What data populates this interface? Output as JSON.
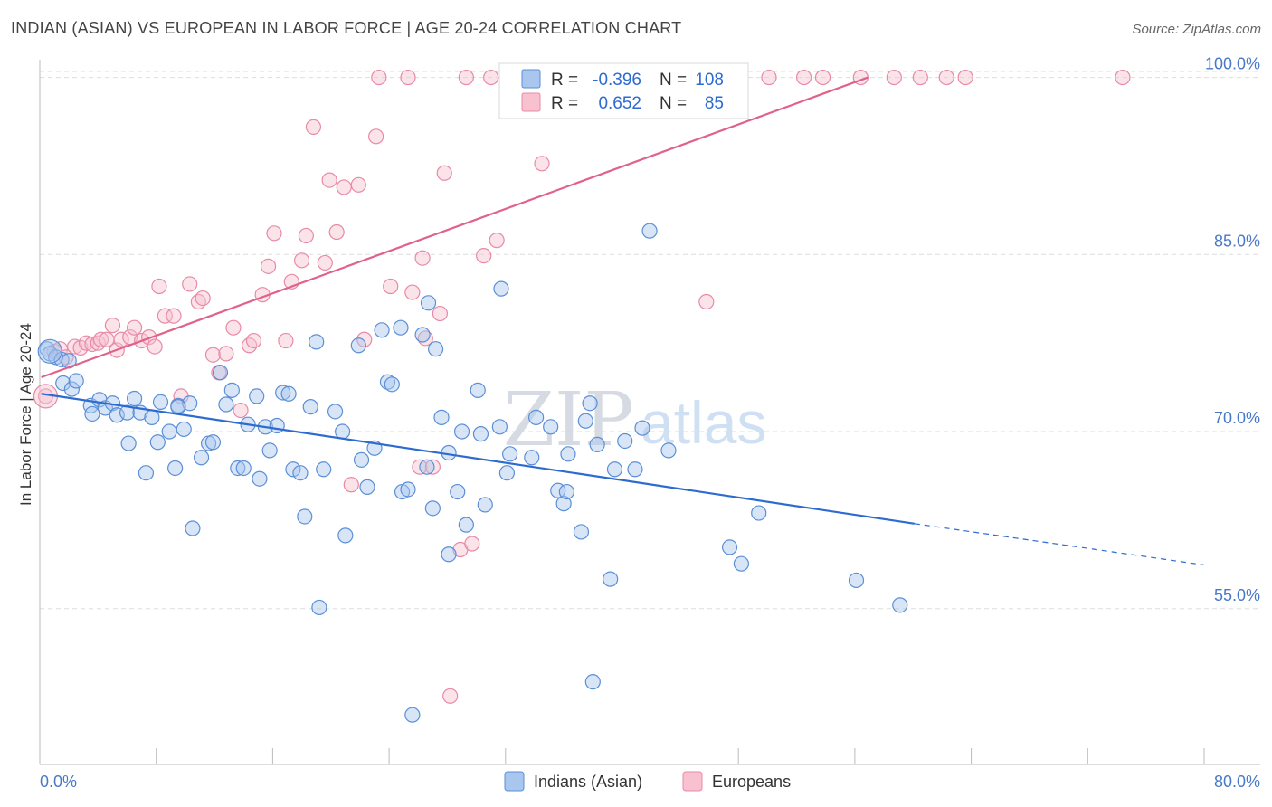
{
  "title": "INDIAN (ASIAN) VS EUROPEAN IN LABOR FORCE | AGE 20-24 CORRELATION CHART",
  "source": "Source: ZipAtlas.com",
  "watermark": {
    "part1": "ZIP",
    "part2": "atlas"
  },
  "colors": {
    "blue_fill": "#a8c6ee",
    "blue_stroke": "#5b8fd6",
    "blue_line": "#2d6bd0",
    "pink_fill": "#f7c1d0",
    "pink_stroke": "#e88aa6",
    "pink_line": "#e0628b",
    "grid": "#dddddd",
    "tick_text": "#4a78c8"
  },
  "legend": {
    "rows": [
      {
        "r_label": "R =",
        "r_value": "-0.396",
        "n_label": "N =",
        "n_value": "108"
      },
      {
        "r_label": "R =",
        "r_value": "0.652",
        "n_label": "N =",
        "n_value": "85"
      }
    ]
  },
  "chart_data": {
    "type": "scatter",
    "title": "INDIAN (ASIAN) VS EUROPEAN IN LABOR FORCE | AGE 20-24 CORRELATION CHART",
    "xlabel": "",
    "ylabel": "In Labor Force | Age 20-24",
    "xlim": [
      0,
      80
    ],
    "ylim": [
      41.8,
      101.5
    ],
    "x_tick_labels": {
      "min": "0.0%",
      "max": "80.0%"
    },
    "y_ticks": [
      {
        "value": 100,
        "label": "100.0%"
      },
      {
        "value": 85,
        "label": "85.0%"
      },
      {
        "value": 70,
        "label": "70.0%"
      },
      {
        "value": 55,
        "label": "55.0%"
      }
    ],
    "grid": true,
    "legend_placement": "bottom-center",
    "series": [
      {
        "name": "Indians (Asian)",
        "color": "#5b8fd6",
        "trend": {
          "x0": 0.1,
          "y0": 73.2,
          "x1": 60.1,
          "y1": 62.2,
          "dash_to_x": 80.0,
          "dash_to_y": 58.7
        },
        "points": [
          [
            0.5,
            77.0
          ],
          [
            0.7,
            76.6
          ],
          [
            1.1,
            76.3
          ],
          [
            1.5,
            76.1
          ],
          [
            1.6,
            74.1
          ],
          [
            2.2,
            73.6
          ],
          [
            2.5,
            74.3
          ],
          [
            3.5,
            72.2
          ],
          [
            4.1,
            72.7
          ],
          [
            4.5,
            72.0
          ],
          [
            5.0,
            72.4
          ],
          [
            5.3,
            71.4
          ],
          [
            6.0,
            71.6
          ],
          [
            6.1,
            69.0
          ],
          [
            6.5,
            72.8
          ],
          [
            6.9,
            71.6
          ],
          [
            7.3,
            66.5
          ],
          [
            7.7,
            71.2
          ],
          [
            8.1,
            69.1
          ],
          [
            8.3,
            72.5
          ],
          [
            8.9,
            70.0
          ],
          [
            9.3,
            66.9
          ],
          [
            9.5,
            72.2
          ],
          [
            9.9,
            70.2
          ],
          [
            10.3,
            72.4
          ],
          [
            10.5,
            61.8
          ],
          [
            11.1,
            67.8
          ],
          [
            11.6,
            69.0
          ],
          [
            11.9,
            69.1
          ],
          [
            12.4,
            75.0
          ],
          [
            12.8,
            72.3
          ],
          [
            13.2,
            73.5
          ],
          [
            13.6,
            66.9
          ],
          [
            14.0,
            66.9
          ],
          [
            14.3,
            70.6
          ],
          [
            14.9,
            73.0
          ],
          [
            15.1,
            66.0
          ],
          [
            15.5,
            70.4
          ],
          [
            15.8,
            68.4
          ],
          [
            16.3,
            70.5
          ],
          [
            16.7,
            73.3
          ],
          [
            17.1,
            73.2
          ],
          [
            17.4,
            66.8
          ],
          [
            17.9,
            66.5
          ],
          [
            18.2,
            62.8
          ],
          [
            18.6,
            72.1
          ],
          [
            19.0,
            77.6
          ],
          [
            19.2,
            55.1
          ],
          [
            19.5,
            66.8
          ],
          [
            20.3,
            71.7
          ],
          [
            20.8,
            70.0
          ],
          [
            21.0,
            61.2
          ],
          [
            21.9,
            77.3
          ],
          [
            22.1,
            67.6
          ],
          [
            22.5,
            65.3
          ],
          [
            23.0,
            68.6
          ],
          [
            23.5,
            78.6
          ],
          [
            23.9,
            74.2
          ],
          [
            24.2,
            74.0
          ],
          [
            24.8,
            78.8
          ],
          [
            24.9,
            64.9
          ],
          [
            25.3,
            65.1
          ],
          [
            25.6,
            46.0
          ],
          [
            26.3,
            78.2
          ],
          [
            26.6,
            67.0
          ],
          [
            26.7,
            80.9
          ],
          [
            27.0,
            63.5
          ],
          [
            27.2,
            77.0
          ],
          [
            27.6,
            71.2
          ],
          [
            28.1,
            68.2
          ],
          [
            28.1,
            59.6
          ],
          [
            28.7,
            64.9
          ],
          [
            29.0,
            70.0
          ],
          [
            29.3,
            62.1
          ],
          [
            30.1,
            73.5
          ],
          [
            30.3,
            69.8
          ],
          [
            30.6,
            63.8
          ],
          [
            31.6,
            70.4
          ],
          [
            32.1,
            66.5
          ],
          [
            32.3,
            68.1
          ],
          [
            31.7,
            82.1
          ],
          [
            33.8,
            67.8
          ],
          [
            34.1,
            71.2
          ],
          [
            35.1,
            70.4
          ],
          [
            35.6,
            65.0
          ],
          [
            36.0,
            63.9
          ],
          [
            36.2,
            64.9
          ],
          [
            36.3,
            68.1
          ],
          [
            37.2,
            61.5
          ],
          [
            37.5,
            70.9
          ],
          [
            37.8,
            72.4
          ],
          [
            38.0,
            48.8
          ],
          [
            38.3,
            68.9
          ],
          [
            39.2,
            57.5
          ],
          [
            39.5,
            66.8
          ],
          [
            40.2,
            69.2
          ],
          [
            40.9,
            66.8
          ],
          [
            41.4,
            70.3
          ],
          [
            41.9,
            87.0
          ],
          [
            43.2,
            68.4
          ],
          [
            47.4,
            60.2
          ],
          [
            48.2,
            58.8
          ],
          [
            49.4,
            63.1
          ],
          [
            56.1,
            57.4
          ],
          [
            59.1,
            55.3
          ],
          [
            9.5,
            72.1
          ],
          [
            2.0,
            76.0
          ],
          [
            3.6,
            71.5
          ]
        ]
      },
      {
        "name": "Europeans",
        "color": "#e88aa6",
        "trend": {
          "x0": 0.1,
          "y0": 74.6,
          "x1": 56.9,
          "y1": 100.0
        },
        "points": [
          [
            0.4,
            73.0
          ],
          [
            1.0,
            76.8
          ],
          [
            1.4,
            77.0
          ],
          [
            1.8,
            76.3
          ],
          [
            2.4,
            77.2
          ],
          [
            2.8,
            77.1
          ],
          [
            3.2,
            77.5
          ],
          [
            3.6,
            77.4
          ],
          [
            4.0,
            77.5
          ],
          [
            4.2,
            77.8
          ],
          [
            4.6,
            77.8
          ],
          [
            5.0,
            79.0
          ],
          [
            5.3,
            76.9
          ],
          [
            5.6,
            77.8
          ],
          [
            6.2,
            78.0
          ],
          [
            6.5,
            78.8
          ],
          [
            7.0,
            77.7
          ],
          [
            7.5,
            78.0
          ],
          [
            7.9,
            77.2
          ],
          [
            8.2,
            82.3
          ],
          [
            8.6,
            79.8
          ],
          [
            9.2,
            79.8
          ],
          [
            9.7,
            73.0
          ],
          [
            10.3,
            82.5
          ],
          [
            10.9,
            81.0
          ],
          [
            11.2,
            81.3
          ],
          [
            11.9,
            76.5
          ],
          [
            12.3,
            75.0
          ],
          [
            12.8,
            76.6
          ],
          [
            13.3,
            78.8
          ],
          [
            13.8,
            71.8
          ],
          [
            14.4,
            77.3
          ],
          [
            14.7,
            77.7
          ],
          [
            15.3,
            81.6
          ],
          [
            15.7,
            84.0
          ],
          [
            16.1,
            86.8
          ],
          [
            16.9,
            77.7
          ],
          [
            17.3,
            82.7
          ],
          [
            18.0,
            84.5
          ],
          [
            18.3,
            86.6
          ],
          [
            18.8,
            95.8
          ],
          [
            19.6,
            84.3
          ],
          [
            19.9,
            91.3
          ],
          [
            20.4,
            86.9
          ],
          [
            20.9,
            90.7
          ],
          [
            21.4,
            65.5
          ],
          [
            21.9,
            90.9
          ],
          [
            22.3,
            77.8
          ],
          [
            23.1,
            95.0
          ],
          [
            23.3,
            100.0
          ],
          [
            24.1,
            82.3
          ],
          [
            25.3,
            100.0
          ],
          [
            25.6,
            81.8
          ],
          [
            26.1,
            67.0
          ],
          [
            26.3,
            84.7
          ],
          [
            26.5,
            77.9
          ],
          [
            27.5,
            80.0
          ],
          [
            27.8,
            91.9
          ],
          [
            28.9,
            60.0
          ],
          [
            29.3,
            100.0
          ],
          [
            29.7,
            60.5
          ],
          [
            30.5,
            84.9
          ],
          [
            31.0,
            100.0
          ],
          [
            31.4,
            86.2
          ],
          [
            34.5,
            92.7
          ],
          [
            35.1,
            100.0
          ],
          [
            37.2,
            100.0
          ],
          [
            38.4,
            100.0
          ],
          [
            40.0,
            100.0
          ],
          [
            41.4,
            100.0
          ],
          [
            43.2,
            100.0
          ],
          [
            45.7,
            100.0
          ],
          [
            47.6,
            100.0
          ],
          [
            50.1,
            100.0
          ],
          [
            52.5,
            100.0
          ],
          [
            53.8,
            100.0
          ],
          [
            56.4,
            100.0
          ],
          [
            58.7,
            100.0
          ],
          [
            60.5,
            100.0
          ],
          [
            62.3,
            100.0
          ],
          [
            63.6,
            100.0
          ],
          [
            74.4,
            100.0
          ],
          [
            45.8,
            81.0
          ],
          [
            28.2,
            47.6
          ],
          [
            27.0,
            67.0
          ]
        ]
      }
    ]
  },
  "bottom_legend": [
    {
      "label": "Indians (Asian)"
    },
    {
      "label": "Europeans"
    }
  ]
}
